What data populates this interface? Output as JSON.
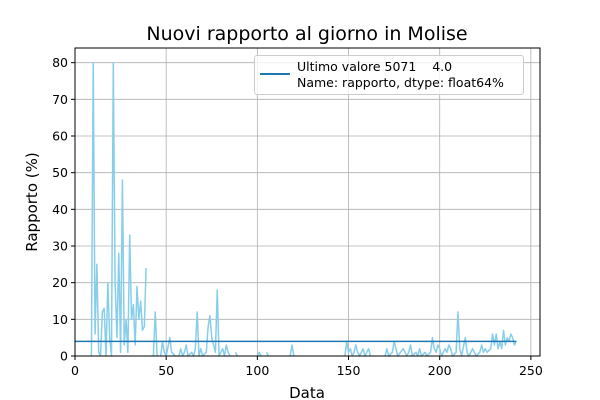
{
  "chart_data": {
    "type": "line",
    "title": "Nuovi rapporto al giorno in Molise",
    "xlabel": "Data",
    "ylabel": "Rapporto (%)",
    "xlim": [
      0,
      255
    ],
    "ylim": [
      0,
      84
    ],
    "xticks": [
      0,
      50,
      100,
      150,
      200,
      250
    ],
    "yticks": [
      0,
      10,
      20,
      30,
      40,
      50,
      60,
      70,
      80
    ],
    "grid": true,
    "legend": "upper right",
    "series": [
      {
        "color": "#87ceeb",
        "x": [
          9,
          10,
          11,
          12,
          13,
          14,
          15,
          16,
          17,
          18,
          19,
          20,
          21,
          22,
          23,
          24,
          25,
          26,
          27,
          28,
          29,
          30,
          31,
          32,
          33,
          34,
          35,
          36,
          37,
          38,
          39,
          41,
          43,
          44,
          45,
          46,
          47,
          48,
          49,
          50,
          52,
          53,
          55,
          56,
          57,
          58,
          59,
          60,
          61,
          62,
          64,
          65,
          66,
          67,
          68,
          69,
          70,
          72,
          73,
          74,
          75,
          76,
          77,
          78,
          79,
          80,
          81,
          82,
          83,
          84,
          85,
          86,
          88,
          89,
          90,
          100,
          101,
          102,
          103,
          105,
          106,
          107,
          118,
          119,
          120,
          121,
          148,
          149,
          150,
          151,
          152,
          153,
          154,
          155,
          156,
          158,
          159,
          160,
          161,
          162,
          163,
          170,
          171,
          172,
          174,
          175,
          176,
          177,
          180,
          181,
          182,
          183,
          184,
          185,
          187,
          188,
          189,
          190,
          192,
          193,
          195,
          196,
          197,
          198,
          199,
          200,
          201,
          203,
          204,
          205,
          206,
          207,
          209,
          210,
          211,
          212,
          214,
          215,
          216,
          218,
          219,
          220,
          222,
          223,
          224,
          225,
          226,
          228,
          229,
          230,
          231,
          232,
          233,
          234,
          235,
          236,
          237,
          238,
          239,
          240,
          241,
          242
        ],
        "values": [
          0,
          80,
          6,
          25,
          1,
          0,
          12,
          13,
          0,
          20,
          5,
          0,
          80,
          20,
          5,
          28,
          1,
          48,
          3,
          10,
          1,
          33,
          10,
          14,
          3,
          19,
          10,
          15,
          7,
          8,
          24,
          null,
          0,
          12,
          0,
          null,
          0,
          4,
          1,
          0,
          5,
          1,
          0,
          null,
          0,
          2,
          0,
          1,
          3,
          0,
          1,
          0,
          2,
          12,
          0,
          2,
          0,
          1,
          8,
          11,
          5,
          3,
          1,
          18,
          0,
          1,
          2,
          0,
          3,
          1,
          0,
          null,
          1,
          0,
          null,
          0,
          1,
          0,
          null,
          1,
          0,
          null,
          0,
          3,
          0,
          null,
          0,
          4,
          1,
          2,
          0,
          1,
          3,
          1,
          0,
          2,
          0,
          1,
          2,
          0,
          null,
          0,
          2,
          0,
          1,
          4,
          2,
          0,
          2,
          1,
          0,
          1,
          3,
          0,
          1,
          0,
          2,
          0,
          1,
          0,
          1,
          5,
          2,
          1,
          3,
          2,
          0,
          2,
          1,
          3,
          2,
          0,
          1,
          12,
          2,
          0,
          5,
          1,
          0,
          2,
          1,
          0,
          1,
          3,
          1,
          2,
          1,
          2,
          6,
          3,
          6,
          2,
          4,
          2,
          7,
          3,
          5,
          4,
          6,
          5,
          3,
          4
        ]
      },
      {
        "name": "Ultimo valore 5071    4.0\nName: rapporto, dtype: float64%",
        "color": "#1f77b4",
        "x": [
          0,
          242
        ],
        "values": [
          4.0,
          4.0
        ]
      }
    ]
  }
}
